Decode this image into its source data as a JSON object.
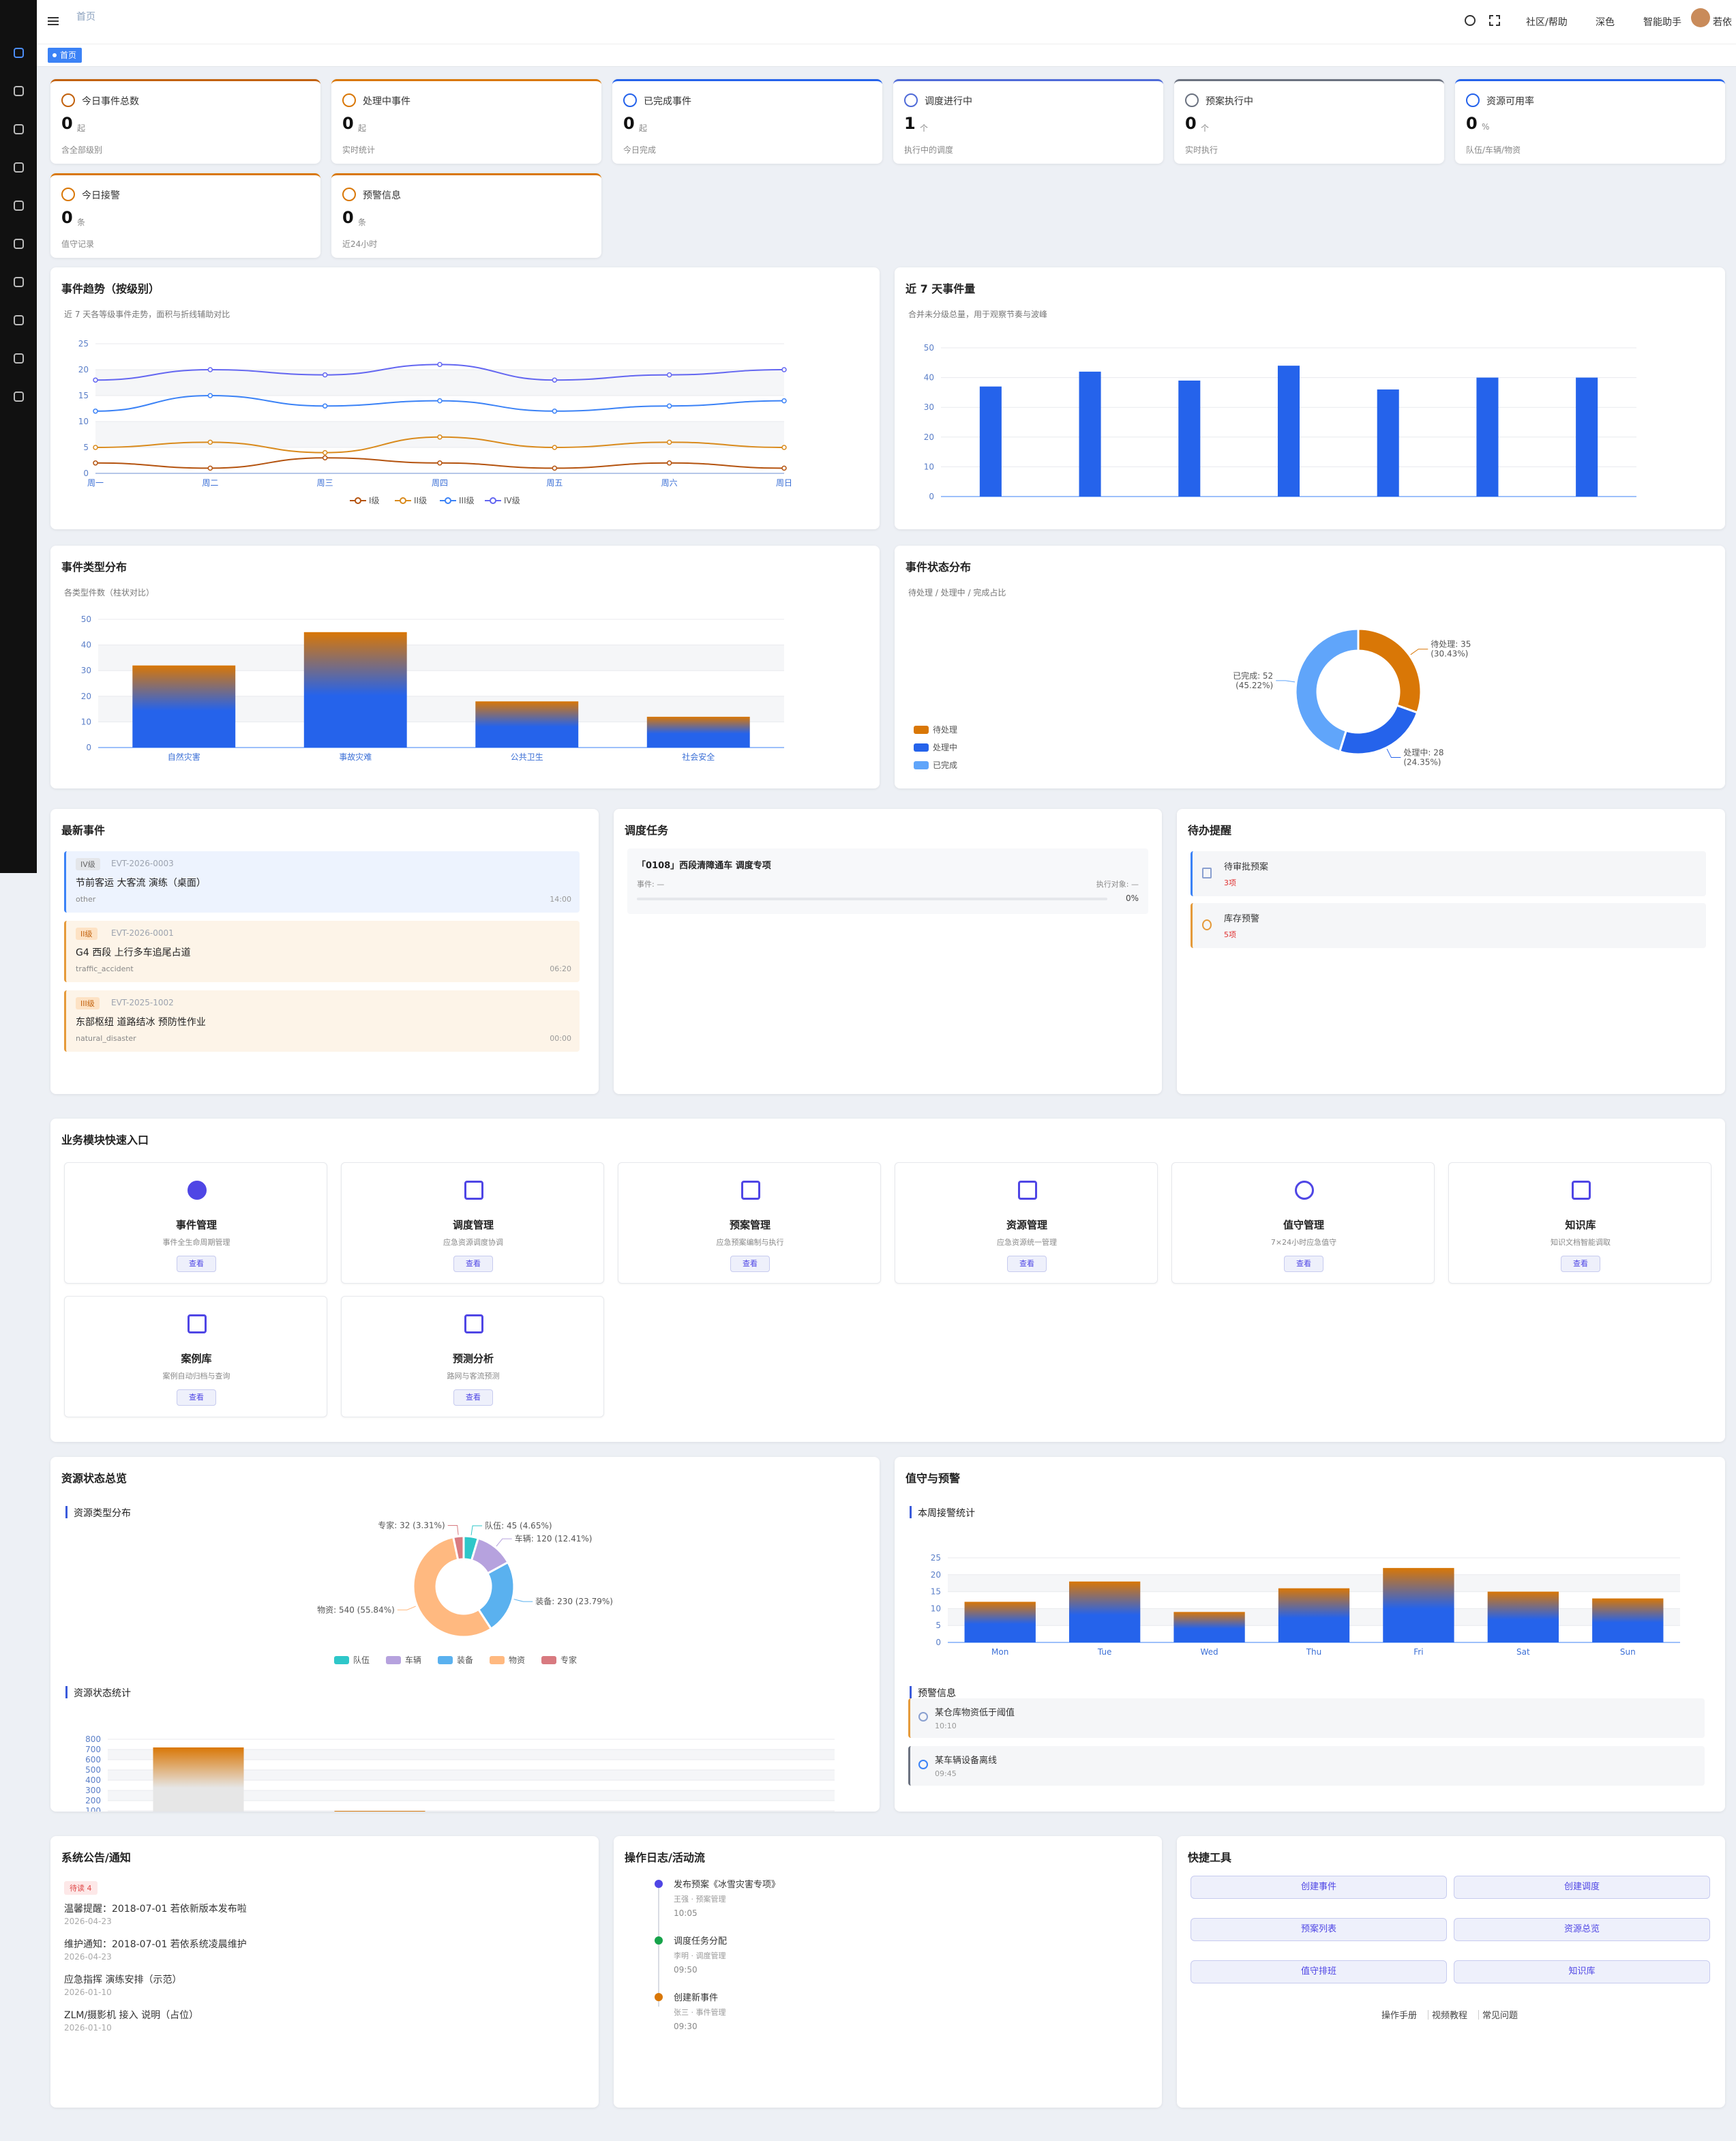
{
  "header": {
    "breadcrumb": "首页",
    "tools": [
      "社区/帮助",
      "深色",
      "智能助手",
      "若依"
    ],
    "tab": "首页"
  },
  "stats": [
    {
      "label": "今日事件总数",
      "value": 0,
      "unit": "起",
      "note": "含全部级别",
      "color": "#c2610c"
    },
    {
      "label": "处理中事件",
      "value": 0,
      "unit": "起",
      "note": "实时统计",
      "color": "#d97706"
    },
    {
      "label": "已完成事件",
      "value": 0,
      "unit": "起",
      "note": "今日完成",
      "color": "#2563eb"
    },
    {
      "label": "调度进行中",
      "value": 1,
      "unit": "个",
      "note": "执行中的调度",
      "color": "#4f6bd8"
    },
    {
      "label": "预案执行中",
      "value": 0,
      "unit": "个",
      "note": "实时执行",
      "color": "#6b7280"
    },
    {
      "label": "资源可用率",
      "value": 0,
      "unit": "%",
      "note": "队伍/车辆/物资",
      "color": "#2563eb"
    },
    {
      "label": "今日接警",
      "value": 0,
      "unit": "条",
      "note": "值守记录",
      "color": "#d97706"
    },
    {
      "label": "预警信息",
      "value": 0,
      "unit": "条",
      "note": "近24小时",
      "color": "#d97706"
    }
  ],
  "chart_data": [
    {
      "type": "line",
      "title": "事件趋势（按级别）",
      "subtitle": "近 7 天各等级事件走势，面积与折线辅助对比",
      "categories": [
        "周一",
        "周二",
        "周三",
        "周四",
        "周五",
        "周六",
        "周日"
      ],
      "series": [
        {
          "name": "I级",
          "color": "#b4530f",
          "values": [
            2,
            1,
            3,
            2,
            1,
            2,
            1
          ]
        },
        {
          "name": "II级",
          "color": "#d98a1c",
          "values": [
            5,
            6,
            4,
            7,
            5,
            6,
            5
          ]
        },
        {
          "name": "III级",
          "color": "#3b82f6",
          "values": [
            12,
            15,
            13,
            14,
            12,
            13,
            14
          ]
        },
        {
          "name": "IV级",
          "color": "#6366f1",
          "values": [
            18,
            20,
            19,
            21,
            18,
            19,
            20
          ]
        }
      ],
      "ylim": [
        0,
        25
      ],
      "yticks": [
        0,
        5,
        10,
        15,
        20,
        25
      ],
      "grid": true,
      "split_area": true,
      "legend": "bottom"
    },
    {
      "type": "bar",
      "title": "近 7 天事件量",
      "subtitle": "合并未分级总量，用于观察节奏与波峰",
      "categories": [
        null,
        null,
        null,
        null,
        null,
        null,
        null
      ],
      "values": [
        37,
        42,
        39,
        44,
        36,
        40,
        40
      ],
      "color": "#2563eb",
      "ylim": [
        0,
        50
      ],
      "yticks": [
        0,
        10,
        20,
        30,
        40,
        50
      ],
      "grid": true
    },
    {
      "type": "bar",
      "title": "事件类型分布",
      "subtitle": "各类型件数（柱状对比）",
      "categories": [
        "自然灾害",
        "事故灾难",
        "公共卫生",
        "社会安全"
      ],
      "values": [
        32,
        45,
        18,
        12
      ],
      "gradient": [
        "#d97706",
        "#2563eb"
      ],
      "ylim": [
        0,
        50
      ],
      "yticks": [
        0,
        10,
        20,
        30,
        40,
        50
      ],
      "grid": true,
      "split_area": true
    },
    {
      "type": "pie",
      "title": "事件状态分布",
      "subtitle": "待处理 / 处理中 / 完成占比",
      "donut": true,
      "categories": [
        "待处理",
        "处理中",
        "已完成"
      ],
      "values": [
        35,
        28,
        52
      ],
      "colors": [
        "#d97706",
        "#2563eb",
        "#60a5fa"
      ],
      "value_labels": [
        [
          "待处理: 35",
          "(30.43%)"
        ],
        [
          "处理中: 28",
          "(24.35%)"
        ],
        [
          "已完成: 52",
          "(45.22%)"
        ]
      ],
      "legend": "bottom-left"
    },
    {
      "type": "pie",
      "title": "资源类型分布",
      "donut": true,
      "categories": [
        "队伍",
        "车辆",
        "装备",
        "物资",
        "专家"
      ],
      "values": [
        45,
        120,
        230,
        540,
        32
      ],
      "colors": [
        "#2ec7c9",
        "#b6a2de",
        "#5ab1ef",
        "#ffb980",
        "#d87a80"
      ],
      "value_labels": [
        "队伍: 45 (4.65%)",
        "车辆: 120 (12.41%)",
        "装备: 230 (23.79%)",
        "物资: 540 (55.84%)",
        "专家: 32 (3.31%)"
      ],
      "legend": "bottom"
    },
    {
      "type": "bar",
      "title": "资源状态统计",
      "categories": [
        null,
        null
      ],
      "values": [
        720,
        100
      ],
      "gradient": [
        "#d97706",
        "#e6e6e6"
      ],
      "ylim": [
        0,
        800
      ],
      "yticks": [
        100,
        200,
        300,
        400,
        500,
        600,
        700,
        800
      ],
      "grid": true,
      "split_area": true
    },
    {
      "type": "bar",
      "title": "本周接警统计",
      "categories": [
        "Mon",
        "Tue",
        "Wed",
        "Thu",
        "Fri",
        "Sat",
        "Sun"
      ],
      "values": [
        12,
        18,
        9,
        16,
        22,
        15,
        13
      ],
      "gradient": [
        "#d97706",
        "#2563eb"
      ],
      "ylim": [
        0,
        25
      ],
      "yticks": [
        0,
        5,
        10,
        15,
        20,
        25
      ],
      "grid": true,
      "split_area": true
    }
  ],
  "events": {
    "title": "最新事件",
    "items": [
      {
        "level": "IV级",
        "code": "EVT-2026-0003",
        "title": "节前客运 大客流 演练（桌面）",
        "type": "other",
        "time": "14:00",
        "color": "#3b82f6"
      },
      {
        "level": "II级",
        "code": "EVT-2026-0001",
        "title": "G4 西段 上行多车追尾占道",
        "type": "traffic_accident",
        "time": "06:20",
        "color": "#e59a3a"
      },
      {
        "level": "III级",
        "code": "EVT-2025-1002",
        "title": "东部枢纽 道路结冰 预防性作业",
        "type": "natural_disaster",
        "time": "00:00",
        "color": "#e59a3a"
      }
    ]
  },
  "dispatch": {
    "title": "调度任务",
    "task": "「0108」西段清障通车 调度专项",
    "event": "事件: —",
    "target": "执行对象: —",
    "progress": {
      "value": 0,
      "label": "0%"
    }
  },
  "todo": {
    "title": "待办提醒",
    "items": [
      {
        "name": "待审批预案",
        "count": "3项",
        "color": "#3b82f6"
      },
      {
        "name": "库存预警",
        "count": "5项",
        "color": "#e59a3a"
      }
    ]
  },
  "modules": {
    "title": "业务模块快速入口",
    "button": "查看",
    "items": [
      {
        "name": "事件管理",
        "desc": "事件全生命周期管理"
      },
      {
        "name": "调度管理",
        "desc": "应急资源调度协调"
      },
      {
        "name": "预案管理",
        "desc": "应急预案编制与执行"
      },
      {
        "name": "资源管理",
        "desc": "应急资源统一管理"
      },
      {
        "name": "值守管理",
        "desc": "7×24小时应急值守"
      },
      {
        "name": "知识库",
        "desc": "知识文档智能调取"
      },
      {
        "name": "案例库",
        "desc": "案例自动归档与查询"
      },
      {
        "name": "预测分析",
        "desc": "路网与客流预测"
      }
    ]
  },
  "resources": {
    "title": "资源状态总览"
  },
  "duty": {
    "title": "值守与预警",
    "warn_title": "预警信息",
    "warnings": [
      {
        "text": "某仓库物资低于阈值",
        "time": "10:10",
        "color": "#e59a3a"
      },
      {
        "text": "某车辆设备离线",
        "time": "09:45",
        "color": "#6b7280"
      }
    ]
  },
  "notices": {
    "title": "系统公告/通知",
    "badge": "待读 4",
    "items": [
      {
        "text": "温馨提醒：2018-07-01 若依新版本发布啦",
        "date": "2026-04-23"
      },
      {
        "text": "维护通知：2018-07-01 若依系统凌晨维护",
        "date": "2026-04-23"
      },
      {
        "text": "应急指挥 演练安排（示范）",
        "date": "2026-01-10"
      },
      {
        "text": "ZLM/摄影机 接入 说明（占位）",
        "date": "2026-01-10"
      }
    ]
  },
  "logs": {
    "title": "操作日志/活动流",
    "items": [
      {
        "action": "发布预案《冰雪灾害专项》",
        "meta": "王强 · 预案管理",
        "time": "10:05",
        "color": "#4f46e5"
      },
      {
        "action": "调度任务分配",
        "meta": "李明 · 调度管理",
        "time": "09:50",
        "color": "#16a34a"
      },
      {
        "action": "创建新事件",
        "meta": "张三 · 事件管理",
        "time": "09:30",
        "color": "#d97706"
      }
    ]
  },
  "tools": {
    "title": "快捷工具",
    "buttons": [
      "创建事件",
      "创建调度",
      "预案列表",
      "资源总览",
      "值守排班",
      "知识库"
    ],
    "links": [
      "操作手册",
      "视频教程",
      "常见问题"
    ]
  }
}
